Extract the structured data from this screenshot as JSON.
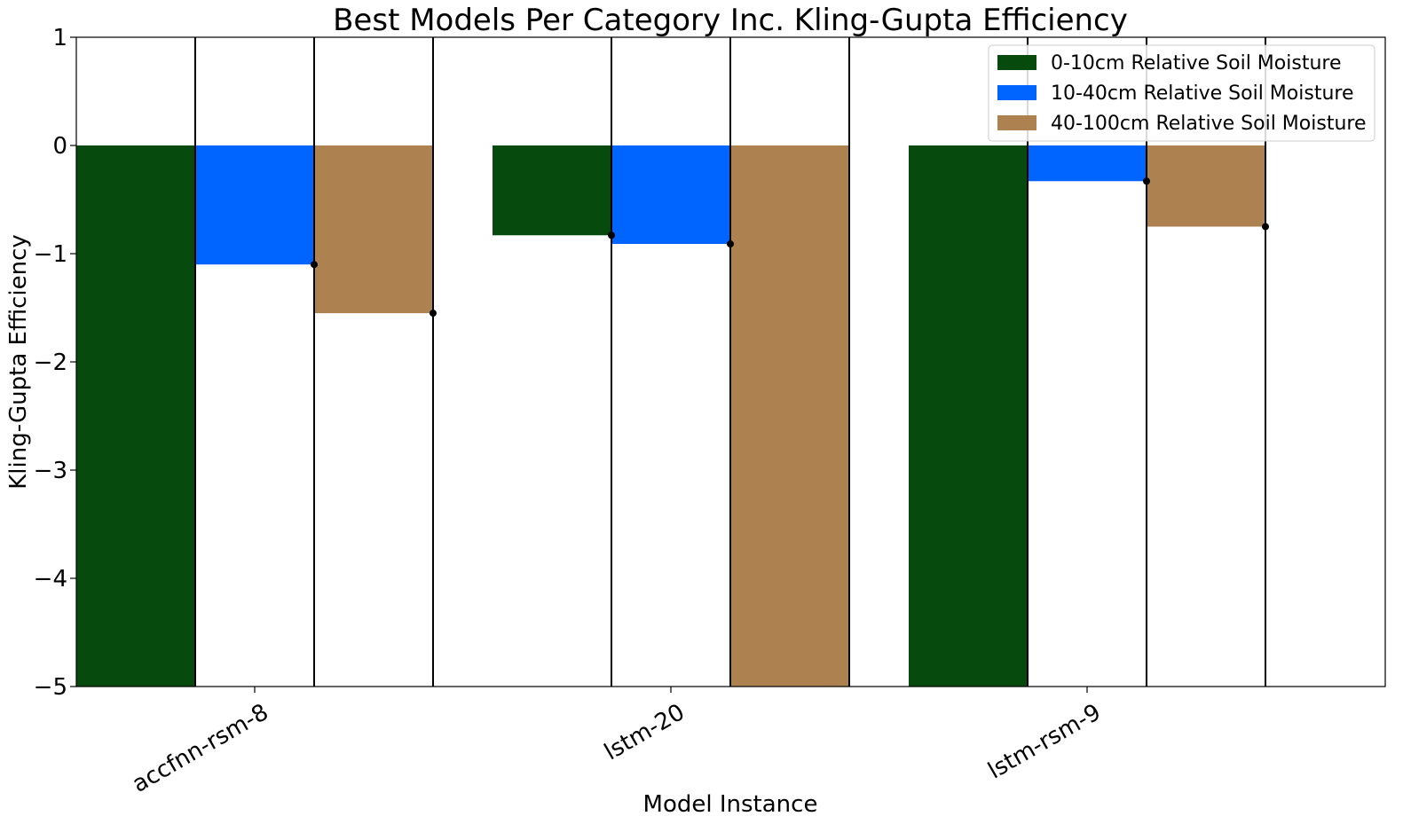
{
  "chart_data": {
    "type": "bar",
    "title": "Best Models Per Category Inc. Kling-Gupta Efficiency",
    "xlabel": "Model Instance",
    "ylabel": "Kling-Gupta Efficiency",
    "categories": [
      "accfnn-rsm-8",
      "lstm-20",
      "lstm-rsm-9"
    ],
    "ylim": [
      -5,
      1
    ],
    "yticks": [
      1,
      0,
      -1,
      -2,
      -3,
      -4,
      -5
    ],
    "ytick_labels": [
      "1",
      "0",
      "−1",
      "−2",
      "−3",
      "−4",
      "−5"
    ],
    "grid": false,
    "legend_position": "top-right",
    "error_bars": "vertical black lines spanning full axis at each bar center with a dot marker at the bar value",
    "series": [
      {
        "name": "0-10cm Relative Soil Moisture",
        "color": "#064a0d",
        "values": [
          -5.3,
          -0.83,
          -5.3
        ]
      },
      {
        "name": "10-40cm Relative Soil Moisture",
        "color": "#0064ff",
        "values": [
          -1.1,
          -0.91,
          -0.33
        ]
      },
      {
        "name": "40-100cm Relative Soil Moisture",
        "color": "#ad8250",
        "values": [
          -1.55,
          -5.3,
          -0.75
        ]
      }
    ]
  }
}
